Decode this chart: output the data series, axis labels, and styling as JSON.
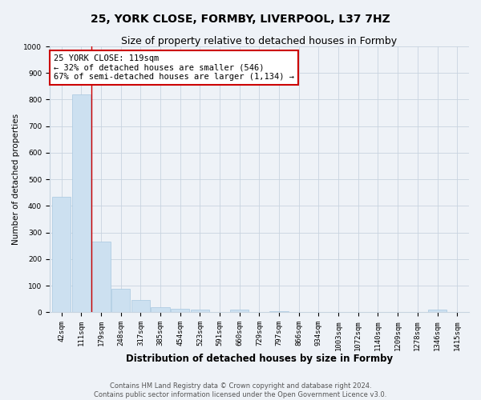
{
  "title": "25, YORK CLOSE, FORMBY, LIVERPOOL, L37 7HZ",
  "subtitle": "Size of property relative to detached houses in Formby",
  "xlabel": "Distribution of detached houses by size in Formby",
  "ylabel": "Number of detached properties",
  "footer_line1": "Contains HM Land Registry data © Crown copyright and database right 2024.",
  "footer_line2": "Contains public sector information licensed under the Open Government Licence v3.0.",
  "annotation_title": "25 YORK CLOSE: 119sqm",
  "annotation_line1": "← 32% of detached houses are smaller (546)",
  "annotation_line2": "67% of semi-detached houses are larger (1,134) →",
  "bar_categories": [
    "42sqm",
    "111sqm",
    "179sqm",
    "248sqm",
    "317sqm",
    "385sqm",
    "454sqm",
    "523sqm",
    "591sqm",
    "660sqm",
    "729sqm",
    "797sqm",
    "866sqm",
    "934sqm",
    "1003sqm",
    "1072sqm",
    "1140sqm",
    "1209sqm",
    "1278sqm",
    "1346sqm",
    "1415sqm"
  ],
  "bar_values": [
    435,
    820,
    265,
    90,
    47,
    20,
    13,
    9,
    0,
    9,
    0,
    5,
    0,
    0,
    0,
    0,
    0,
    0,
    0,
    9,
    0
  ],
  "bar_color": "#cce0f0",
  "bar_edge_color": "#a8c8e0",
  "vline_color": "#cc0000",
  "vline_position": 1.5,
  "ylim": [
    0,
    1000
  ],
  "yticks": [
    0,
    100,
    200,
    300,
    400,
    500,
    600,
    700,
    800,
    900,
    1000
  ],
  "background_color": "#eef2f7",
  "grid_color": "#c8d4e0",
  "title_fontsize": 10,
  "subtitle_fontsize": 9,
  "annotation_box_color": "#ffffff",
  "annotation_box_edge": "#cc0000",
  "annotation_fontsize": 7.5,
  "footer_fontsize": 6,
  "xlabel_fontsize": 8.5,
  "ylabel_fontsize": 7.5,
  "tick_fontsize": 6.5
}
